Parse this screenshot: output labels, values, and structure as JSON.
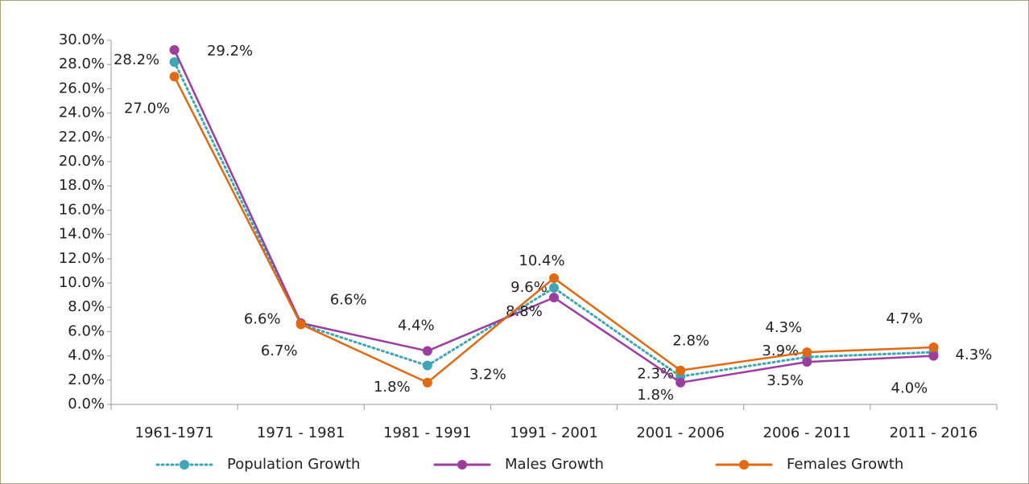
{
  "chart_data": {
    "type": "line",
    "categories": [
      "1961-1971",
      "1971 - 1981",
      "1981 - 1991",
      "1991 - 2001",
      "2001 - 2006",
      "2006 - 2011",
      "2011 - 2016"
    ],
    "series": [
      {
        "name": "Population Growth",
        "color": "#3ea6b4",
        "dash": "dotted",
        "values": [
          28.2,
          6.6,
          3.2,
          9.6,
          2.3,
          3.9,
          4.3
        ],
        "value_labels": [
          "28.2%",
          "6.6%",
          "3.2%",
          "9.6%",
          "2.3%",
          "3.9%",
          "4.3%"
        ]
      },
      {
        "name": "Males Growth",
        "color": "#9c3d9f",
        "values": [
          29.2,
          6.7,
          4.4,
          8.8,
          1.8,
          3.5,
          4.0
        ],
        "value_labels": [
          "29.2%",
          "6.7%",
          "4.4%",
          "8.8%",
          "1.8%",
          "3.5%",
          "4.0%"
        ]
      },
      {
        "name": "Females Growth",
        "color": "#e2690f",
        "values": [
          27.0,
          6.6,
          1.8,
          10.4,
          2.8,
          4.3,
          4.7
        ],
        "value_labels": [
          "27.0%",
          "6.6%",
          "1.8%",
          "10.4%",
          "2.8%",
          "4.3%",
          "4.7%"
        ]
      }
    ],
    "ylim": [
      0,
      30
    ],
    "yticks": [
      {
        "value": 0,
        "label": "0.0%"
      },
      {
        "value": 2,
        "label": "2.0%"
      },
      {
        "value": 4,
        "label": "4.0%"
      },
      {
        "value": 6,
        "label": "6.0%"
      },
      {
        "value": 8,
        "label": "8.0%"
      },
      {
        "value": 10,
        "label": "10.0%"
      },
      {
        "value": 12,
        "label": "12.0%"
      },
      {
        "value": 14,
        "label": "14.0%"
      },
      {
        "value": 16,
        "label": "16.0%"
      },
      {
        "value": 18,
        "label": "18.0%"
      },
      {
        "value": 20,
        "label": "20.0%"
      },
      {
        "value": 22,
        "label": "22.0%"
      },
      {
        "value": 24,
        "label": "24.0%"
      },
      {
        "value": 26,
        "label": "26.0%"
      },
      {
        "value": 28,
        "label": "28.0%"
      },
      {
        "value": 30,
        "label": "30.0%"
      }
    ],
    "grid": false,
    "legend": "bottom"
  }
}
